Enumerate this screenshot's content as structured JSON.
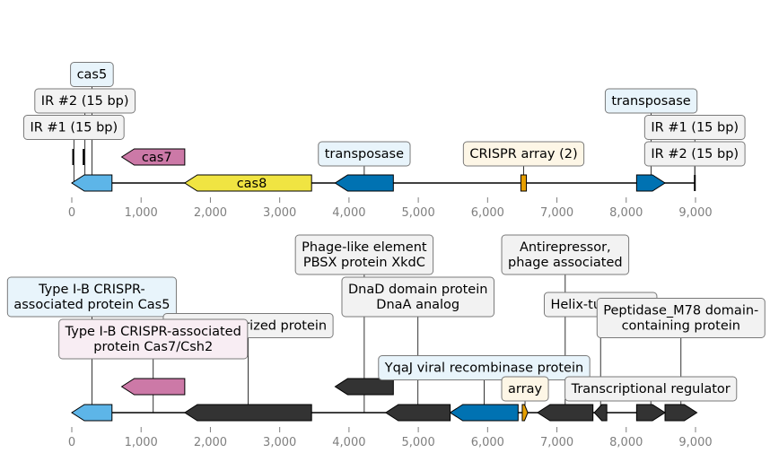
{
  "colors": {
    "cas_blue": "#5DB5E8",
    "cas_pink": "#CC79A7",
    "cas_yellow": "#F0E442",
    "transposase_blue": "#0072B2",
    "array_orange": "#E69F00",
    "dark_gene": "#333333",
    "box_blue": "#E8F4FB",
    "box_pink": "#F8EDF3",
    "box_yellow": "#FDF6E6",
    "box_gray": "#F2F2F2",
    "tick_gray": "#7f7f7f"
  },
  "panels": [
    {
      "id": "top",
      "axis_range": [
        0,
        9000
      ],
      "ticks": [
        {
          "value": 0,
          "label": "0"
        },
        {
          "value": 1000,
          "label": "1,000"
        },
        {
          "value": 2000,
          "label": "2,000"
        },
        {
          "value": 3000,
          "label": "3,000"
        },
        {
          "value": 4000,
          "label": "4,000"
        },
        {
          "value": 5000,
          "label": "5,000"
        },
        {
          "value": 6000,
          "label": "6,000"
        },
        {
          "value": 7000,
          "label": "7,000"
        },
        {
          "value": 8000,
          "label": "8,000"
        },
        {
          "value": 9000,
          "label": "9,000"
        }
      ],
      "features": [
        {
          "name": "cas5-gene",
          "start": 0,
          "end": 580,
          "strand": -1,
          "level": 0,
          "color": "cas_blue"
        },
        {
          "name": "cas7-gene",
          "start": 720,
          "end": 1630,
          "strand": -1,
          "level": 1,
          "color": "cas_pink",
          "inner_label": "cas7"
        },
        {
          "name": "cas8-gene",
          "start": 1630,
          "end": 3460,
          "strand": 0,
          "level": 0,
          "color": "cas_yellow",
          "inner_label": "cas8"
        },
        {
          "name": "transposase-gene-left",
          "start": 3800,
          "end": 4640,
          "strand": -1,
          "level": 0,
          "color": "transposase_blue"
        },
        {
          "name": "crispr-array-feature",
          "start": 6480,
          "end": 6560,
          "strand": 0,
          "level": 0,
          "color": "array_orange"
        },
        {
          "name": "transposase-gene-right",
          "start": 8150,
          "end": 8560,
          "strand": 1,
          "level": 0,
          "color": "transposase_blue"
        },
        {
          "name": "ir1-left-mark",
          "start": 20,
          "end": 30,
          "strand": 0,
          "level": 1,
          "color": "dark_gene",
          "thin": true
        },
        {
          "name": "ir2-left-mark",
          "start": 170,
          "end": 180,
          "strand": 0,
          "level": 1,
          "color": "dark_gene",
          "thin": true
        },
        {
          "name": "ir-right-mark",
          "start": 8990,
          "end": 9000,
          "strand": 0,
          "level": 0,
          "color": "dark_gene",
          "thin": true
        }
      ],
      "annotations": [
        {
          "name": "annotation-cas5",
          "text": "cas5",
          "anchor": 290,
          "row": 4,
          "box": "box_blue"
        },
        {
          "name": "annotation-ir2-left",
          "text": "IR #2 (15 bp)",
          "anchor": 190,
          "row": 3,
          "box": "box_gray"
        },
        {
          "name": "annotation-ir1-left",
          "text": "IR #1 (15 bp)",
          "anchor": 30,
          "row": 2,
          "box": "box_gray"
        },
        {
          "name": "annotation-transposase-left",
          "text": "transposase",
          "anchor": 4220,
          "row": 1,
          "box": "box_blue"
        },
        {
          "name": "annotation-crispr-array",
          "text": "CRISPR array (2)",
          "anchor": 6520,
          "row": 1,
          "box": "box_yellow"
        },
        {
          "name": "annotation-transposase-right",
          "text": "transposase",
          "anchor": 8360,
          "row": 3,
          "box": "box_blue"
        },
        {
          "name": "annotation-ir1-right",
          "text": "IR #1 (15 bp)",
          "anchor": 8990,
          "row": 2,
          "box": "box_gray"
        },
        {
          "name": "annotation-ir2-right",
          "text": "IR #2 (15 bp)",
          "anchor": 8990,
          "row": 1,
          "box": "box_gray"
        }
      ]
    },
    {
      "id": "bottom",
      "axis_range": [
        0,
        9000
      ],
      "ticks": [
        {
          "value": 0,
          "label": "0"
        },
        {
          "value": 1000,
          "label": "1,000"
        },
        {
          "value": 2000,
          "label": "2,000"
        },
        {
          "value": 3000,
          "label": "3,000"
        },
        {
          "value": 4000,
          "label": "4,000"
        },
        {
          "value": 5000,
          "label": "5,000"
        },
        {
          "value": 6000,
          "label": "6,000"
        },
        {
          "value": 7000,
          "label": "7,000"
        },
        {
          "value": 8000,
          "label": "8,000"
        },
        {
          "value": 9000,
          "label": "9,000"
        }
      ],
      "features": [
        {
          "name": "cas5-gene",
          "start": 0,
          "end": 580,
          "strand": -1,
          "level": 0,
          "color": "cas_blue"
        },
        {
          "name": "cas7-gene",
          "start": 720,
          "end": 1630,
          "strand": -1,
          "level": 1,
          "color": "cas_pink"
        },
        {
          "name": "uncharacterized-gene",
          "start": 1630,
          "end": 3460,
          "strand": -1,
          "level": 0,
          "color": "dark_gene"
        },
        {
          "name": "xkdc-gene",
          "start": 3800,
          "end": 4640,
          "strand": -1,
          "level": 1,
          "color": "dark_gene"
        },
        {
          "name": "dnad-gene",
          "start": 4530,
          "end": 5460,
          "strand": -1,
          "level": 0,
          "color": "dark_gene"
        },
        {
          "name": "yqaj-gene",
          "start": 5460,
          "end": 6440,
          "strand": -1,
          "level": 0,
          "color": "transposase_blue"
        },
        {
          "name": "array-feature",
          "start": 6500,
          "end": 6580,
          "strand": 1,
          "level": 0,
          "color": "array_orange"
        },
        {
          "name": "antirepressor-gene",
          "start": 6720,
          "end": 7520,
          "strand": -1,
          "level": 0,
          "color": "dark_gene"
        },
        {
          "name": "hth-gene",
          "start": 7540,
          "end": 7720,
          "strand": -1,
          "level": 0,
          "color": "dark_gene"
        },
        {
          "name": "transcriptional-regulator-gene",
          "start": 8150,
          "end": 8560,
          "strand": 1,
          "level": 0,
          "color": "dark_gene"
        },
        {
          "name": "peptidase-gene",
          "start": 8560,
          "end": 9020,
          "strand": 1,
          "level": 0,
          "color": "dark_gene"
        }
      ],
      "annotations": [
        {
          "name": "annotation-cas5-protein",
          "text": "Type I-B CRISPR-\nassociated protein Cas5",
          "anchor": 290,
          "row": 5,
          "box": "box_blue"
        },
        {
          "name": "annotation-uncharacterized",
          "text": "Uncharacterized protein",
          "anchor": 2545,
          "row": 4,
          "box": "box_gray"
        },
        {
          "name": "annotation-cas7-protein",
          "text": "Type I-B CRISPR-associated\nprotein Cas7/Csh2",
          "anchor": 1175,
          "row": 3,
          "box": "box_pink"
        },
        {
          "name": "annotation-xkdc",
          "text": "Phage-like element\nPBSX protein XkdC",
          "anchor": 4220,
          "row": 7,
          "box": "box_gray"
        },
        {
          "name": "annotation-dnad",
          "text": "DnaD domain protein\nDnaA analog",
          "anchor": 4995,
          "row": 5,
          "box": "box_gray"
        },
        {
          "name": "annotation-yqaj",
          "text": "YqaJ viral recombinase protein",
          "anchor": 5950,
          "row": 2,
          "box": "box_blue"
        },
        {
          "name": "annotation-array",
          "text": "array",
          "anchor": 6540,
          "row": 1,
          "box": "box_yellow"
        },
        {
          "name": "annotation-antirepressor",
          "text": "Antirepressor,\nphage associated",
          "anchor": 7120,
          "row": 7,
          "box": "box_gray"
        },
        {
          "name": "annotation-hth",
          "text": "Helix-turn-helix",
          "anchor": 7630,
          "row": 5,
          "box": "box_gray"
        },
        {
          "name": "annotation-transcriptional-regulator",
          "text": "Transcriptional regulator",
          "anchor": 8355,
          "row": 1,
          "box": "box_gray"
        },
        {
          "name": "annotation-peptidase",
          "text": "Peptidase_M78 domain-\ncontaining protein",
          "anchor": 8790,
          "row": 4,
          "box": "box_gray"
        }
      ]
    }
  ]
}
